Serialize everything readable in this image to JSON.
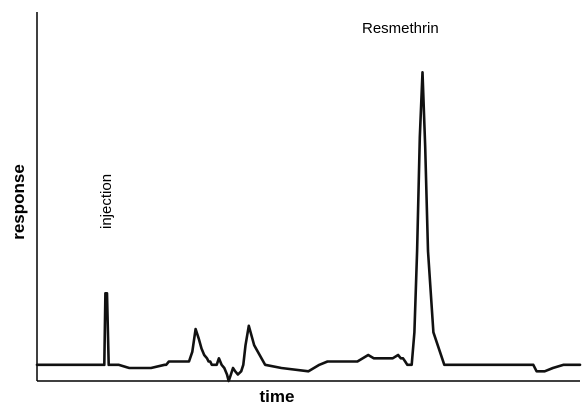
{
  "chart_data": {
    "type": "line",
    "title": "",
    "xlabel": "time",
    "ylabel": "response",
    "grid": false,
    "xlim": [
      0,
      100
    ],
    "ylim": [
      0,
      100
    ],
    "annotations": {
      "injection": "injection",
      "peak": "Resmethrin"
    },
    "series": [
      {
        "x": [
          0,
          5,
          10,
          12.4,
          12.6,
          12.9,
          13.2,
          13.5,
          15,
          17,
          18,
          21,
          23.5,
          23.8,
          24.3,
          24.8,
          25.3,
          26,
          27,
          28,
          28.6,
          29.2,
          29.8,
          30.3,
          30.8,
          31.3,
          31.6,
          31.9,
          32.2,
          32.6,
          33.1,
          33.5,
          34,
          34.5,
          35,
          35.3,
          35.7,
          36.1,
          36.5,
          37,
          37.6,
          38,
          38.4,
          39,
          40,
          42,
          45,
          50,
          52,
          53.5,
          55,
          56,
          57,
          58,
          59,
          60,
          61,
          62,
          64,
          65.5,
          66.5,
          67,
          67.4,
          67.8,
          68.2,
          68.6,
          69,
          69.5,
          70,
          70.5,
          71,
          71.5,
          72,
          73,
          75,
          80,
          85,
          89,
          90.5,
          91,
          91.4,
          92,
          92.8,
          93.5,
          95,
          97,
          100
        ],
        "y": [
          5,
          5,
          5,
          5,
          27,
          27,
          5,
          5,
          5,
          4,
          4,
          4,
          5,
          5,
          6,
          6,
          6,
          6,
          6,
          6,
          9,
          16,
          13,
          10,
          8,
          7,
          6,
          6,
          5,
          5,
          5,
          7,
          5,
          4,
          2,
          0,
          2,
          4,
          3,
          2,
          3,
          5,
          11,
          17,
          11,
          5,
          4,
          3,
          5,
          6,
          6,
          6,
          6,
          6,
          6,
          7,
          8,
          7,
          7,
          7,
          8,
          7,
          7,
          6,
          5,
          5,
          5,
          15,
          40,
          75,
          95,
          72,
          40,
          15,
          5,
          5,
          5,
          5,
          5,
          5,
          5,
          3,
          3,
          3,
          4,
          5,
          5
        ]
      }
    ]
  }
}
